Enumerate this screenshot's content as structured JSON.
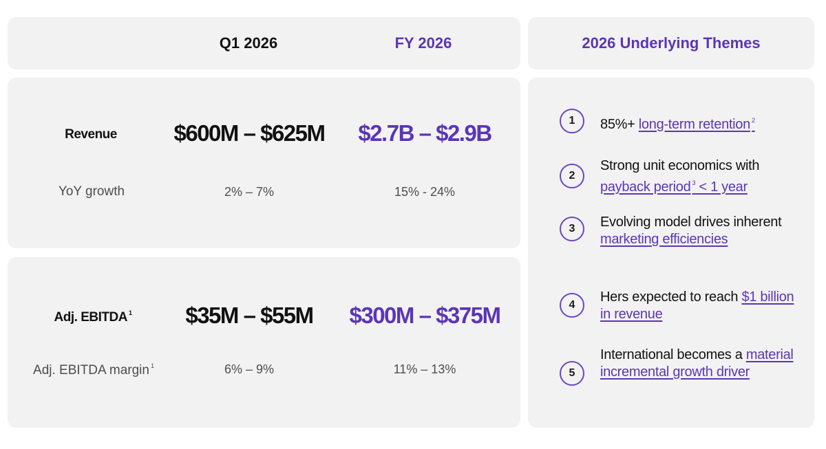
{
  "header": {
    "q1_label": "Q1 2026",
    "fy_label": "FY 2026",
    "themes_title": "2026 Underlying Themes"
  },
  "revenue": {
    "label": "Revenue",
    "q1": "$600M – $625M",
    "fy": "$2.7B – $2.9B",
    "growth_label": "YoY growth",
    "growth_q1": "2% – 7%",
    "growth_fy": "15% - 24%"
  },
  "ebitda": {
    "label": "Adj. EBITDA",
    "label_sup": "1",
    "q1": "$35M – $55M",
    "fy": "$300M – $375M",
    "margin_label": "Adj. EBITDA margin",
    "margin_sup": "1",
    "margin_q1": "6% – 9%",
    "margin_fy": "11% – 13%"
  },
  "themes": [
    {
      "num": "1",
      "plain": "85%+ ",
      "link": "long-term retention",
      "link_sup": "2"
    },
    {
      "num": "2",
      "plain": "Strong unit economics with ",
      "link": "payback period",
      "link_sup": "3",
      "link_after": " < 1 year"
    },
    {
      "num": "3",
      "plain": "Evolving model drives inherent ",
      "link": "marketing efficiencies"
    },
    {
      "num": "4",
      "plain": "Hers expected to reach ",
      "link": "$1 billion in revenue"
    },
    {
      "num": "5",
      "plain": "International becomes a ",
      "link": "material incremental growth driver"
    }
  ],
  "colors": {
    "accent": "#5b35b5",
    "panel_bg": "#f2f2f2"
  }
}
